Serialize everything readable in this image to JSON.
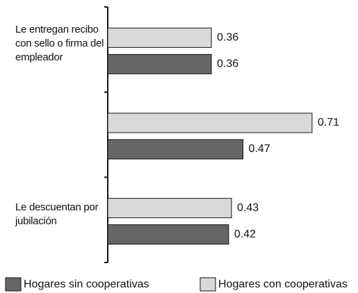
{
  "chart_data": {
    "type": "hbar",
    "categories": [
      "Le entregan recibo con sello o firma del empleador",
      null,
      "Le descuentan por jubilación"
    ],
    "series": [
      {
        "name": "Hogares con cooperativas",
        "color": "#d9d9d9",
        "values": [
          0.36,
          0.71,
          0.43
        ]
      },
      {
        "name": "Hogares sin cooperativas",
        "color": "#666666",
        "values": [
          0.36,
          0.47,
          0.42
        ]
      }
    ],
    "legend_order": [
      1,
      0
    ]
  }
}
